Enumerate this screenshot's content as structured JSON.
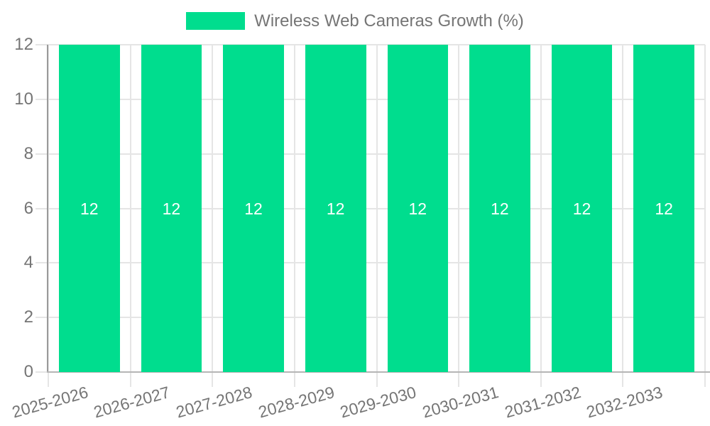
{
  "legend": {
    "label": "Wireless Web Cameras Growth (%)"
  },
  "chart_data": {
    "type": "bar",
    "title": "Wireless Web Cameras Growth (%)",
    "categories": [
      "2025-2026",
      "2026-2027",
      "2027-2028",
      "2028-2029",
      "2029-2030",
      "2030-2031",
      "2031-2032",
      "2032-2033"
    ],
    "values": [
      12,
      12,
      12,
      12,
      12,
      12,
      12,
      12
    ],
    "bar_labels": [
      "12",
      "12",
      "12",
      "12",
      "12",
      "12",
      "12",
      "12"
    ],
    "xlabel": "",
    "ylabel": "",
    "ylim": [
      0,
      12
    ],
    "yticks": [
      0,
      2,
      4,
      6,
      8,
      10,
      12
    ],
    "grid": true,
    "legend_position": "top",
    "bar_color": "#00DD8E",
    "bar_label_color": "#ffffff",
    "axis_text_color": "#757575",
    "grid_color": "#e5e5e5",
    "y_axis_line_color": "#9a9a9a",
    "x_axis_line_color": "#b5b5b5"
  }
}
